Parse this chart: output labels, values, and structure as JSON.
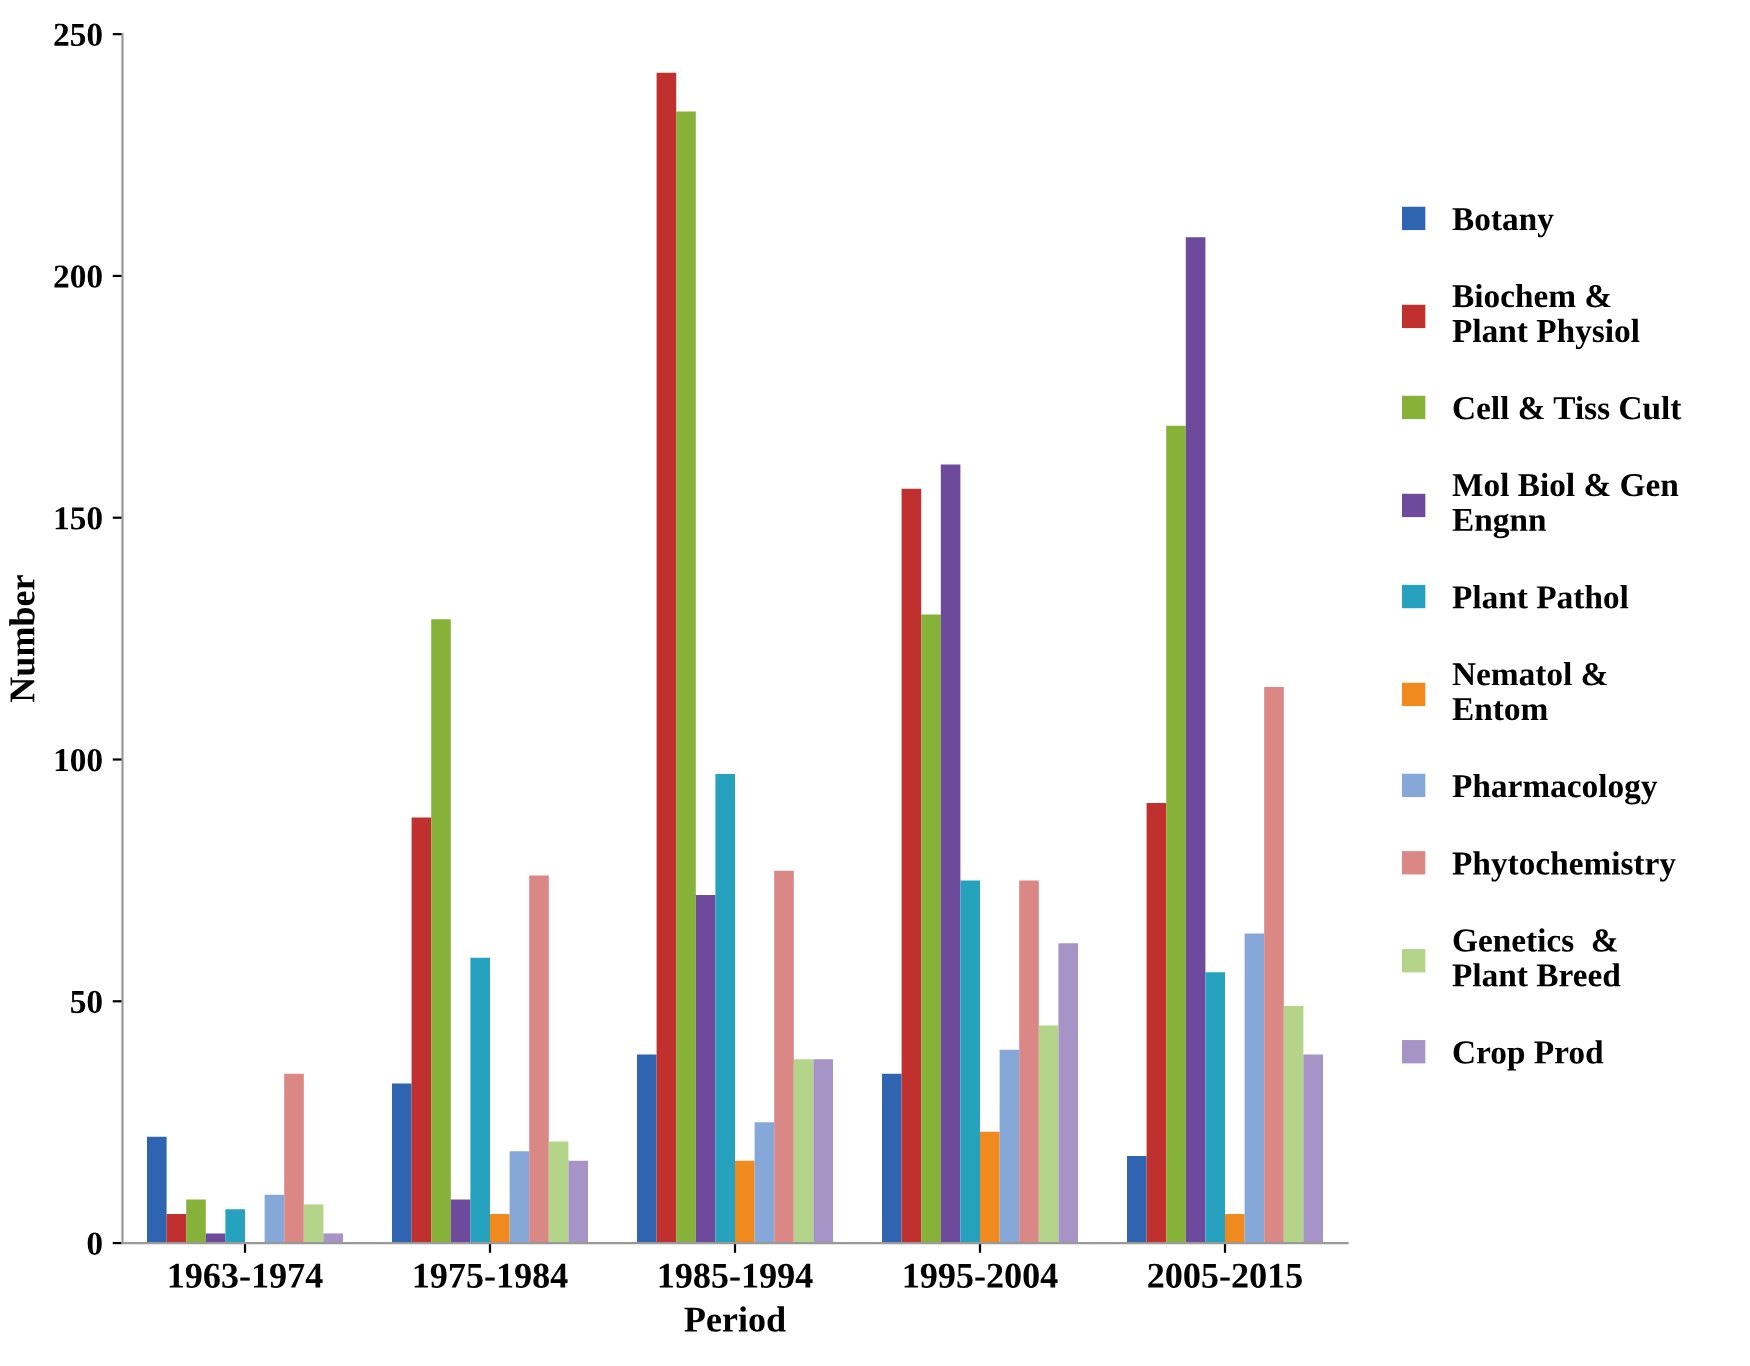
{
  "chart_data": {
    "type": "bar",
    "xlabel": "Period",
    "ylabel": "Number",
    "categories": [
      "1963-1974",
      "1975-1984",
      "1985-1994",
      "1995-2004",
      "2005-2015"
    ],
    "series": [
      {
        "name": "Botany",
        "color": "#2e64b0",
        "values": [
          22,
          33,
          39,
          35,
          18
        ]
      },
      {
        "name": "Biochem &\nPlant Physiol",
        "color": "#c0302e",
        "values": [
          6,
          88,
          242,
          156,
          91
        ]
      },
      {
        "name": "Cell & Tiss Cult",
        "color": "#86b23a",
        "values": [
          9,
          129,
          234,
          130,
          169
        ]
      },
      {
        "name": "Mol Biol & Gen\nEngnn",
        "color": "#6d4a9c",
        "values": [
          2,
          9,
          72,
          161,
          208
        ]
      },
      {
        "name": "Plant Pathol",
        "color": "#26a2be",
        "values": [
          7,
          59,
          97,
          75,
          56
        ]
      },
      {
        "name": "Nematol &\nEntom",
        "color": "#f08a1e",
        "values": [
          0,
          6,
          17,
          23,
          6
        ]
      },
      {
        "name": "Pharmacology",
        "color": "#86a8d8",
        "values": [
          10,
          19,
          25,
          40,
          64
        ]
      },
      {
        "name": "Phytochemistry",
        "color": "#d98886",
        "values": [
          35,
          76,
          77,
          75,
          115
        ]
      },
      {
        "name": "Genetics  &\nPlant Breed",
        "color": "#b4d48a",
        "values": [
          8,
          21,
          38,
          45,
          49
        ]
      },
      {
        "name": "Crop Prod",
        "color": "#a694c6",
        "values": [
          2,
          17,
          38,
          62,
          39
        ]
      }
    ],
    "ylim": [
      0,
      250
    ],
    "yticks": [
      0,
      50,
      100,
      150,
      200,
      250
    ],
    "legend": "right",
    "grid": false
  }
}
